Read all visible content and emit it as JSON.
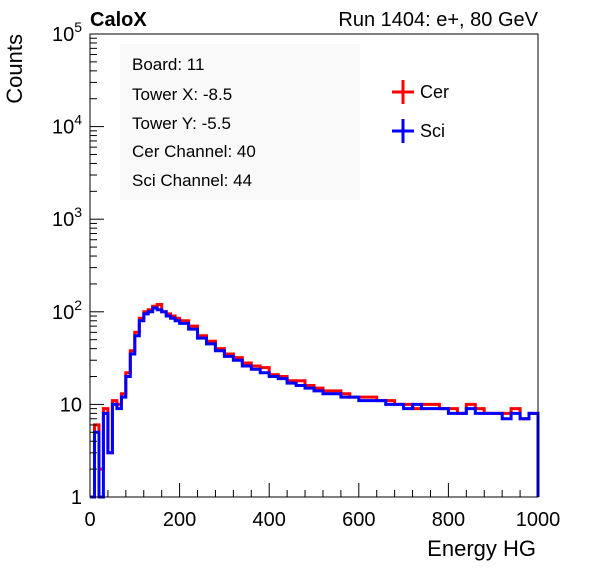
{
  "header": {
    "left_title": "CaloX",
    "right_title": "Run 1404: e+, 80 GeV"
  },
  "info_box": {
    "lines": [
      "Board: 11",
      "Tower X: -8.5",
      "Tower Y: -5.5",
      "Cer Channel: 40",
      "Sci Channel: 44"
    ]
  },
  "colors": {
    "cer": "#ff0000",
    "sci": "#0000ff",
    "axes": "#000000"
  },
  "chart_data": {
    "type": "line",
    "title": "",
    "xlabel": "Energy HG",
    "ylabel": "Counts",
    "xlim": [
      0,
      1000
    ],
    "ylim": [
      1,
      100000
    ],
    "yscale": "log",
    "x_ticks": [
      0,
      200,
      400,
      600,
      800,
      1000
    ],
    "x_tick_labels": [
      "0",
      "200",
      "400",
      "600",
      "800",
      "1000"
    ],
    "y_ticks": [
      1,
      10,
      100,
      1000,
      10000,
      100000
    ],
    "y_tick_labels": [
      {
        "base": "1",
        "exp": ""
      },
      {
        "base": "10",
        "exp": ""
      },
      {
        "base": "10",
        "exp": "2"
      },
      {
        "base": "10",
        "exp": "3"
      },
      {
        "base": "10",
        "exp": "4"
      },
      {
        "base": "10",
        "exp": "5"
      }
    ],
    "legend": {
      "position": "top-right",
      "entries": [
        "Cer",
        "Sci"
      ]
    },
    "grid": false,
    "series": [
      {
        "name": "Cer",
        "color": "#ff0000",
        "x": [
          0,
          10,
          20,
          30,
          40,
          50,
          60,
          70,
          80,
          90,
          100,
          110,
          120,
          130,
          140,
          150,
          160,
          170,
          180,
          190,
          200,
          220,
          240,
          260,
          280,
          300,
          320,
          340,
          360,
          380,
          400,
          420,
          440,
          460,
          480,
          500,
          520,
          540,
          560,
          580,
          600,
          620,
          640,
          660,
          680,
          700,
          720,
          740,
          760,
          780,
          800,
          820,
          840,
          860,
          880,
          900,
          920,
          940,
          960,
          980,
          1000
        ],
        "y": [
          1,
          6,
          2,
          9,
          3,
          11,
          10,
          13,
          22,
          38,
          60,
          85,
          100,
          105,
          115,
          120,
          100,
          95,
          90,
          85,
          80,
          70,
          55,
          48,
          40,
          35,
          32,
          28,
          26,
          25,
          21,
          20,
          18,
          18,
          16,
          15,
          14,
          14,
          13,
          12,
          12,
          12,
          11,
          11,
          10,
          10,
          9,
          10,
          10,
          9,
          9,
          8,
          10,
          9,
          8,
          8,
          8,
          9,
          7,
          8,
          1
        ]
      },
      {
        "name": "Sci",
        "color": "#0000ff",
        "x": [
          0,
          10,
          20,
          30,
          40,
          50,
          60,
          70,
          80,
          90,
          100,
          110,
          120,
          130,
          140,
          150,
          160,
          170,
          180,
          190,
          200,
          220,
          240,
          260,
          280,
          300,
          320,
          340,
          360,
          380,
          400,
          420,
          440,
          460,
          480,
          500,
          520,
          540,
          560,
          580,
          600,
          620,
          640,
          660,
          680,
          700,
          720,
          740,
          760,
          780,
          800,
          820,
          840,
          860,
          880,
          900,
          920,
          940,
          960,
          980,
          1000
        ],
        "y": [
          1,
          5,
          1,
          8,
          3,
          10,
          9,
          12,
          20,
          35,
          55,
          80,
          95,
          100,
          110,
          105,
          100,
          90,
          85,
          80,
          75,
          65,
          52,
          45,
          38,
          33,
          30,
          26,
          24,
          22,
          20,
          19,
          17,
          16,
          15,
          14,
          13,
          13,
          12,
          12,
          11,
          11,
          11,
          10,
          10,
          9,
          10,
          9,
          9,
          9,
          8,
          8,
          9,
          8,
          8,
          8,
          7,
          8,
          7,
          8,
          1
        ]
      }
    ]
  }
}
